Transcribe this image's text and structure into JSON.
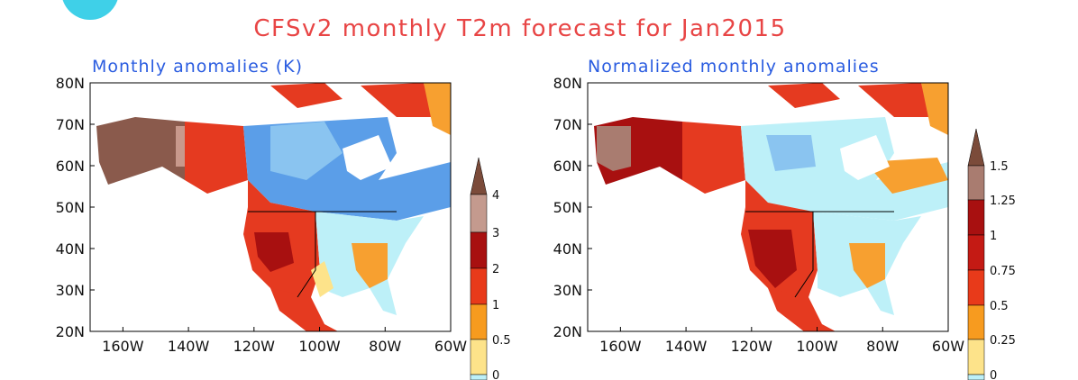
{
  "title": "CFSv2 monthly T2m forecast for Jan2015",
  "panels": [
    {
      "subtitle": "Monthly anomalies (K)",
      "lat_labels": [
        "80N",
        "70N",
        "60N",
        "50N",
        "40N",
        "30N",
        "20N"
      ],
      "lon_labels": [
        "160W",
        "140W",
        "120W",
        "100W",
        "80W",
        "60W"
      ],
      "colorbar_labels": [
        "4",
        "3",
        "2",
        "1",
        "0.5",
        "0"
      ]
    },
    {
      "subtitle": "Normalized monthly anomalies",
      "lat_labels": [
        "80N",
        "70N",
        "60N",
        "50N",
        "40N",
        "30N",
        "20N"
      ],
      "lon_labels": [
        "160W",
        "140W",
        "120W",
        "100W",
        "80W",
        "60W"
      ],
      "colorbar_labels": [
        "1.5",
        "1.25",
        "1",
        "0.75",
        "0.5",
        "0.25",
        "0"
      ]
    }
  ]
}
